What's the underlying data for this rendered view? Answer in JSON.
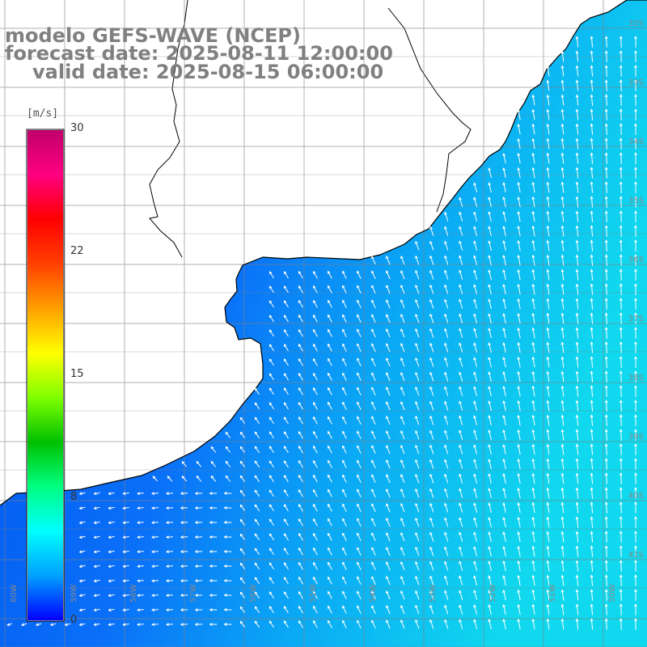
{
  "header": {
    "line1": "modelo GEFS-WAVE (NCEP)",
    "line2": "forecast date: 2025-08-11 12:00:00",
    "line3": "valid date: 2025-08-15 06:00:00"
  },
  "colorbar": {
    "unit": "[m/s]",
    "min": 0,
    "max": 30,
    "ticks": [
      "30",
      "22",
      "15",
      "8",
      "0"
    ],
    "stops": [
      "#0000ff",
      "#00a0ff",
      "#00ffff",
      "#00ff80",
      "#00c000",
      "#80ff00",
      "#ffff00",
      "#ffa000",
      "#ff4000",
      "#ff0000",
      "#ff0080",
      "#c0006a"
    ]
  },
  "lat_labels": [
    "32S",
    "33S",
    "34S",
    "35S",
    "36S",
    "37S",
    "38S",
    "39S",
    "40S",
    "41S"
  ],
  "lon_labels": [
    "60W",
    "59W",
    "58W",
    "57W",
    "56W",
    "55W",
    "54W",
    "53W",
    "52W",
    "51W",
    "50W"
  ],
  "colors": {
    "land": "#ffffff",
    "coast": "#000000",
    "grid": "#808080",
    "arrow": "#ffffff",
    "text": "#808080"
  }
}
